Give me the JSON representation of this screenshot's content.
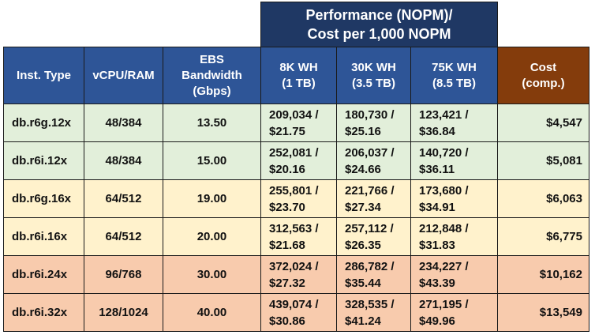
{
  "group_header": {
    "line1": "Performance (NOPM)/",
    "line2": "Cost per 1,000 NOPM"
  },
  "columns": {
    "inst_type": "Inst. Type",
    "vcpu_ram": "vCPU/RAM",
    "ebs": [
      "EBS",
      "Bandwidth",
      "(Gbps)"
    ],
    "wh8": [
      "8K WH",
      "(1 TB)"
    ],
    "wh30": [
      "30K WH",
      "(3.5 TB)"
    ],
    "wh75": [
      "75K WH",
      "(8.5 TB)"
    ],
    "cost": [
      "Cost",
      "(comp.)"
    ]
  },
  "colors": {
    "group_header": "#1f3864",
    "column_header": "#2e5597",
    "cost_header": "#843c0c",
    "green_row": "#e2efda",
    "yellow_row": "#fff2cc",
    "orange_row": "#f8cbad"
  },
  "rows": [
    {
      "inst": "db.r6g.12x",
      "vcpu": "48/384",
      "ebs": "13.50",
      "wh8": [
        "209,034 /",
        "$21.75"
      ],
      "wh30": [
        "180,730 /",
        "$25.16"
      ],
      "wh75": [
        "123,421 /",
        "$36.84"
      ],
      "cost": "$4,547"
    },
    {
      "inst": "db.r6i.12x",
      "vcpu": "48/384",
      "ebs": "15.00",
      "wh8": [
        "252,081 /",
        "$20.16"
      ],
      "wh30": [
        "206,037 /",
        "$24.66"
      ],
      "wh75": [
        "140,720 /",
        "$36.11"
      ],
      "cost": "$5,081"
    },
    {
      "inst": "db.r6g.16x",
      "vcpu": "64/512",
      "ebs": "19.00",
      "wh8": [
        "255,801 /",
        "$23.70"
      ],
      "wh30": [
        "221,766 /",
        "$27.34"
      ],
      "wh75": [
        "173,680 /",
        "$34.91"
      ],
      "cost": "$6,063"
    },
    {
      "inst": "db.r6i.16x",
      "vcpu": "64/512",
      "ebs": "20.00",
      "wh8": [
        "312,563 /",
        "$21.68"
      ],
      "wh30": [
        "257,112 /",
        "$26.35"
      ],
      "wh75": [
        "212,848 /",
        "$31.83"
      ],
      "cost": "$6,775"
    },
    {
      "inst": "db.r6i.24x",
      "vcpu": "96/768",
      "ebs": "30.00",
      "wh8": [
        "372,024 /",
        "$27.32"
      ],
      "wh30": [
        "286,782 /",
        "$35.44"
      ],
      "wh75": [
        "234,227 /",
        "$43.39"
      ],
      "cost": "$10,162"
    },
    {
      "inst": "db.r6i.32x",
      "vcpu": "128/1024",
      "ebs": "40.00",
      "wh8": [
        "439,074 /",
        "$30.86"
      ],
      "wh30": [
        "328,535 /",
        "$41.24"
      ],
      "wh75": [
        "271,195 /",
        "$49.96"
      ],
      "cost": "$13,549"
    }
  ]
}
